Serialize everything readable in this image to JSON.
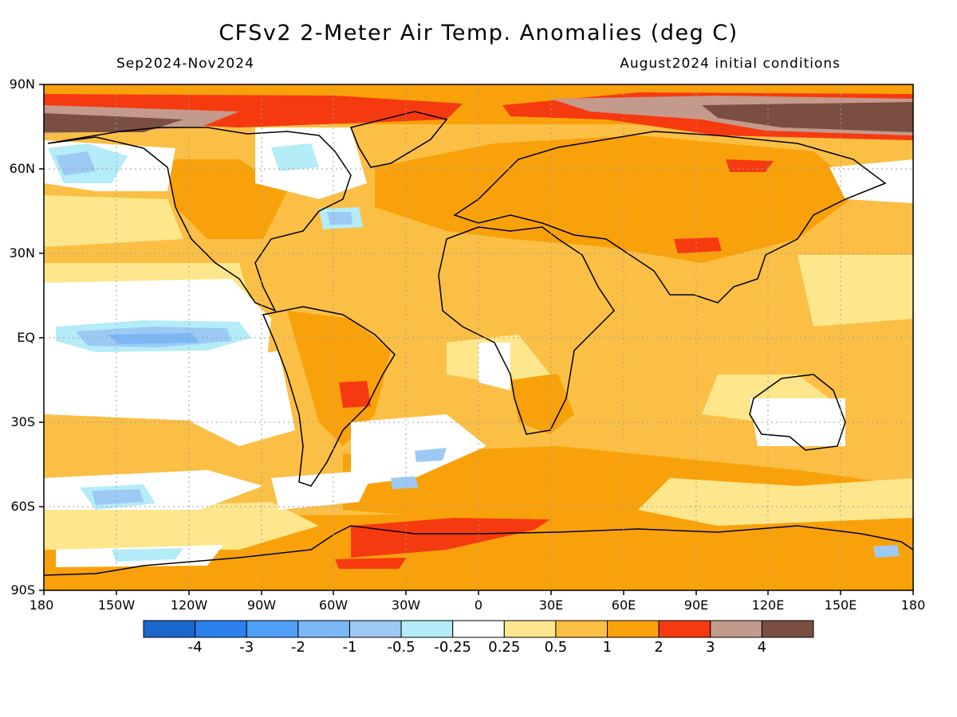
{
  "header": {
    "title": "CFSv2 2-Meter Air Temp. Anomalies (deg C)",
    "period": "Sep2024-Nov2024",
    "initial_conditions": "August2024 initial conditions"
  },
  "axes": {
    "lat_labels": [
      "90N",
      "60N",
      "30N",
      "EQ",
      "30S",
      "60S",
      "90S"
    ],
    "lon_labels": [
      "180",
      "150W",
      "120W",
      "90W",
      "60W",
      "30W",
      "0",
      "30E",
      "60E",
      "90E",
      "120E",
      "150E",
      "180"
    ]
  },
  "colorbar": {
    "labels": [
      "-4",
      "-3",
      "-2",
      "-1",
      "-0.5",
      "-0.25",
      "0.25",
      "0.5",
      "1",
      "2",
      "3",
      "4"
    ],
    "colors": [
      "#1a66cc",
      "#2b80ee",
      "#4da0f5",
      "#7ab8f5",
      "#9ccaf5",
      "#b4ecf8",
      "#ffffff",
      "#fde68c",
      "#fbbf45",
      "#f9a10a",
      "#f63a10",
      "#c49a8c",
      "#7a4f42"
    ]
  },
  "map": {
    "background_color": "#fbbf45",
    "land_border_color": "#000000"
  }
}
